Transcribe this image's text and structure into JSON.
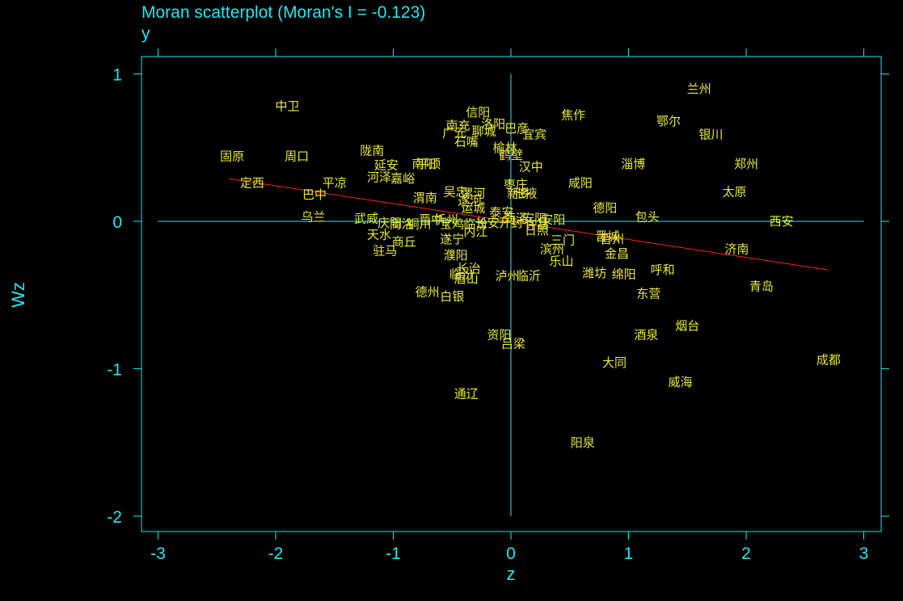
{
  "chart_data": {
    "type": "scatter",
    "title": "Moran scatterplot (Moran's I = -0.123)",
    "subtitle": "y",
    "xlabel": "z",
    "ylabel": "Wz",
    "xlim": [
      -3.15,
      3.15
    ],
    "ylim": [
      -2.1,
      1.1
    ],
    "xticks": [
      -3,
      -2,
      -1,
      0,
      1,
      2,
      3
    ],
    "yticks": [
      -2,
      -1,
      0,
      1
    ],
    "grid": false,
    "regression_line": {
      "x1": -2.4,
      "y1": 0.29,
      "x2": 2.7,
      "y2": -0.33,
      "color": "#ff2020"
    },
    "colors": {
      "axis": "#22e6f0",
      "points": "#e8e83a",
      "background": "#000000"
    },
    "points": [
      {
        "label": "兰州",
        "x": 1.6,
        "y": 0.9
      },
      {
        "label": "中卫",
        "x": -1.9,
        "y": 0.78
      },
      {
        "label": "信阳",
        "x": -0.28,
        "y": 0.74
      },
      {
        "label": "焦作",
        "x": 0.53,
        "y": 0.72
      },
      {
        "label": "鄂尔",
        "x": 1.34,
        "y": 0.68
      },
      {
        "label": "南充",
        "x": -0.45,
        "y": 0.65
      },
      {
        "label": "洛阳",
        "x": -0.15,
        "y": 0.66
      },
      {
        "label": "广元",
        "x": -0.48,
        "y": 0.6
      },
      {
        "label": "聊城",
        "x": -0.23,
        "y": 0.61
      },
      {
        "label": "巴彦",
        "x": 0.05,
        "y": 0.63
      },
      {
        "label": "宜宾",
        "x": 0.2,
        "y": 0.59
      },
      {
        "label": "银川",
        "x": 1.7,
        "y": 0.59
      },
      {
        "label": "石嘴",
        "x": -0.38,
        "y": 0.54
      },
      {
        "label": "榆林",
        "x": -0.05,
        "y": 0.5
      },
      {
        "label": "鹤壁",
        "x": 0.0,
        "y": 0.45
      },
      {
        "label": "固原",
        "x": -2.37,
        "y": 0.44
      },
      {
        "label": "周口",
        "x": -1.82,
        "y": 0.44
      },
      {
        "label": "陇南",
        "x": -1.18,
        "y": 0.48
      },
      {
        "label": "南阳",
        "x": -0.74,
        "y": 0.39
      },
      {
        "label": "平顶",
        "x": -0.7,
        "y": 0.39
      },
      {
        "label": "延安",
        "x": -1.06,
        "y": 0.38
      },
      {
        "label": "汉中",
        "x": 0.17,
        "y": 0.37
      },
      {
        "label": "淄博",
        "x": 1.04,
        "y": 0.39
      },
      {
        "label": "郑州",
        "x": 2.0,
        "y": 0.39
      },
      {
        "label": "河泽",
        "x": -1.12,
        "y": 0.3
      },
      {
        "label": "嘉峪",
        "x": -0.92,
        "y": 0.29
      },
      {
        "label": "定西",
        "x": -2.2,
        "y": 0.26
      },
      {
        "label": "平凉",
        "x": -1.5,
        "y": 0.26
      },
      {
        "label": "枣庄",
        "x": 0.04,
        "y": 0.25
      },
      {
        "label": "咸阳",
        "x": 0.59,
        "y": 0.26
      },
      {
        "label": "巴中",
        "x": -1.67,
        "y": 0.18
      },
      {
        "label": "吴忠",
        "x": -0.47,
        "y": 0.2
      },
      {
        "label": "漯河",
        "x": -0.32,
        "y": 0.19
      },
      {
        "label": "新乡",
        "x": 0.07,
        "y": 0.19
      },
      {
        "label": "张掖",
        "x": 0.12,
        "y": 0.19
      },
      {
        "label": "太原",
        "x": 1.9,
        "y": 0.2
      },
      {
        "label": "渭南",
        "x": -0.73,
        "y": 0.16
      },
      {
        "label": "遂河",
        "x": -0.35,
        "y": 0.14
      },
      {
        "label": "德阳",
        "x": 0.8,
        "y": 0.09
      },
      {
        "label": "运城",
        "x": -0.32,
        "y": 0.09
      },
      {
        "label": "泰安",
        "x": -0.08,
        "y": 0.06
      },
      {
        "label": "包头",
        "x": 1.16,
        "y": 0.03
      },
      {
        "label": "乌兰",
        "x": -1.68,
        "y": 0.03
      },
      {
        "label": "武威",
        "x": -1.23,
        "y": 0.02
      },
      {
        "label": "晋中",
        "x": -0.68,
        "y": 0.01
      },
      {
        "label": "忻州",
        "x": -0.55,
        "y": 0.01
      },
      {
        "label": "菏泽",
        "x": 0.04,
        "y": 0.02
      },
      {
        "label": "安阳",
        "x": 0.2,
        "y": 0.02
      },
      {
        "label": "安阳",
        "x": 0.36,
        "y": 0.01
      },
      {
        "label": "西安",
        "x": 2.3,
        "y": 0.0
      },
      {
        "label": "庆阳",
        "x": -1.03,
        "y": -0.01
      },
      {
        "label": "商洛",
        "x": -0.93,
        "y": -0.02
      },
      {
        "label": "铜川",
        "x": -0.78,
        "y": -0.02
      },
      {
        "label": "宝鸡",
        "x": -0.5,
        "y": -0.02
      },
      {
        "label": "临汾",
        "x": -0.3,
        "y": -0.02
      },
      {
        "label": "长安",
        "x": -0.2,
        "y": -0.01
      },
      {
        "label": "开封",
        "x": 0.0,
        "y": -0.01
      },
      {
        "label": "许昌",
        "x": 0.22,
        "y": -0.02
      },
      {
        "label": "日照",
        "x": 0.22,
        "y": -0.06
      },
      {
        "label": "内江",
        "x": -0.3,
        "y": -0.07
      },
      {
        "label": "天水",
        "x": -1.12,
        "y": -0.09
      },
      {
        "label": "晋城",
        "x": 0.82,
        "y": -0.1
      },
      {
        "label": "晋州",
        "x": 0.86,
        "y": -0.12
      },
      {
        "label": "三门",
        "x": 0.44,
        "y": -0.13
      },
      {
        "label": "商丘",
        "x": -0.91,
        "y": -0.14
      },
      {
        "label": "遂宁",
        "x": -0.5,
        "y": -0.12
      },
      {
        "label": "驻马",
        "x": -1.07,
        "y": -0.2
      },
      {
        "label": "济南",
        "x": 1.92,
        "y": -0.19
      },
      {
        "label": "滨州",
        "x": 0.35,
        "y": -0.19
      },
      {
        "label": "金昌",
        "x": 0.9,
        "y": -0.22
      },
      {
        "label": "濮阳",
        "x": -0.47,
        "y": -0.23
      },
      {
        "label": "乐山",
        "x": 0.43,
        "y": -0.27
      },
      {
        "label": "长治",
        "x": -0.36,
        "y": -0.32
      },
      {
        "label": "呼和",
        "x": 1.29,
        "y": -0.33
      },
      {
        "label": "临汾",
        "x": -0.42,
        "y": -0.36
      },
      {
        "label": "潍坊",
        "x": 0.71,
        "y": -0.35
      },
      {
        "label": "绵阳",
        "x": 0.96,
        "y": -0.36
      },
      {
        "label": "泸州",
        "x": -0.03,
        "y": -0.37
      },
      {
        "label": "临沂",
        "x": 0.15,
        "y": -0.37
      },
      {
        "label": "眉山",
        "x": -0.38,
        "y": -0.39
      },
      {
        "label": "青岛",
        "x": 2.13,
        "y": -0.44
      },
      {
        "label": "德州",
        "x": -0.71,
        "y": -0.48
      },
      {
        "label": "白银",
        "x": -0.5,
        "y": -0.51
      },
      {
        "label": "东营",
        "x": 1.17,
        "y": -0.49
      },
      {
        "label": "烟台",
        "x": 1.5,
        "y": -0.71
      },
      {
        "label": "资阳",
        "x": -0.1,
        "y": -0.77
      },
      {
        "label": "酒泉",
        "x": 1.15,
        "y": -0.77
      },
      {
        "label": "吕梁",
        "x": 0.02,
        "y": -0.83
      },
      {
        "label": "大同",
        "x": 0.88,
        "y": -0.96
      },
      {
        "label": "成都",
        "x": 2.7,
        "y": -0.94
      },
      {
        "label": "威海",
        "x": 1.44,
        "y": -1.09
      },
      {
        "label": "通辽",
        "x": -0.38,
        "y": -1.17
      },
      {
        "label": "阳泉",
        "x": 0.61,
        "y": -1.5
      }
    ]
  }
}
